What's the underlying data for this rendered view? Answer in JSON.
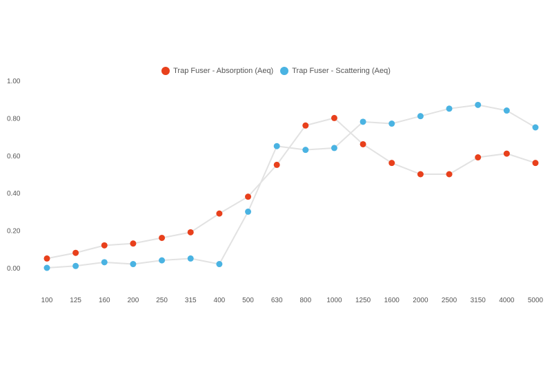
{
  "legend": {
    "series_0_label": "Trap Fuser - Absorption (Aeq)",
    "series_1_label": "Trap Fuser - Scattering (Aeq)"
  },
  "colors": {
    "absorption": "#e8401c",
    "scattering": "#4ab3e2",
    "line": "#e2e2e2"
  },
  "chart_data": {
    "type": "line",
    "title": "",
    "xlabel": "",
    "ylabel": "",
    "categories": [
      "100",
      "125",
      "160",
      "200",
      "250",
      "315",
      "400",
      "500",
      "630",
      "800",
      "1000",
      "1250",
      "1600",
      "2000",
      "2500",
      "3150",
      "4000",
      "5000"
    ],
    "ylim": [
      0,
      1.0
    ],
    "yticks": [
      "0.00",
      "0.20",
      "0.40",
      "0.60",
      "0.80",
      "1.00"
    ],
    "grid": false,
    "legend_position": "top-center",
    "series": [
      {
        "name": "Trap Fuser - Absorption (Aeq)",
        "values": [
          0.05,
          0.08,
          0.12,
          0.13,
          0.16,
          0.19,
          0.29,
          0.38,
          0.55,
          0.76,
          0.8,
          0.66,
          0.56,
          0.5,
          0.5,
          0.59,
          0.61,
          0.56
        ]
      },
      {
        "name": "Trap Fuser - Scattering (Aeq)",
        "values": [
          0.0,
          0.01,
          0.03,
          0.02,
          0.04,
          0.05,
          0.02,
          0.3,
          0.65,
          0.63,
          0.64,
          0.78,
          0.77,
          0.81,
          0.85,
          0.87,
          0.84,
          0.75
        ]
      }
    ]
  }
}
